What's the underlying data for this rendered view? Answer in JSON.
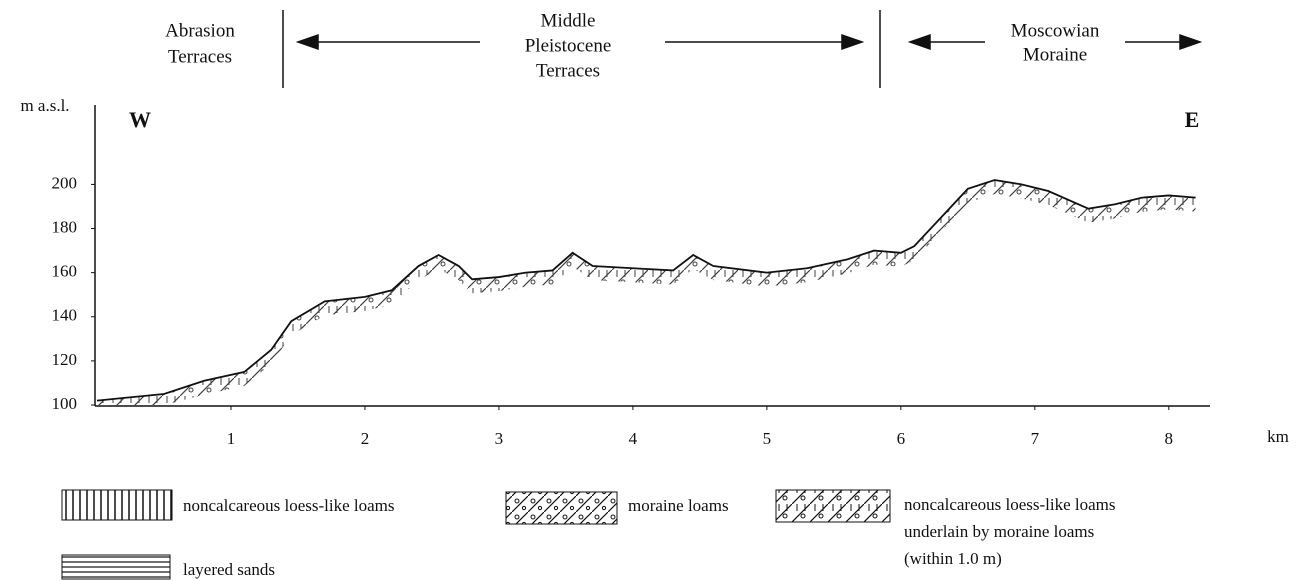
{
  "chart_data": {
    "type": "line",
    "annotations": [
      "Abrasion",
      "Terraces",
      "Middle",
      "Pleistocene",
      "Terraces",
      "Moscowian",
      "Moraine",
      "W",
      "E"
    ],
    "y_label": "m a.s.l.",
    "x_label": "km",
    "x": [
      0,
      0.5,
      0.8,
      1.1,
      1.3,
      1.45,
      1.7,
      2.0,
      2.2,
      2.4,
      2.55,
      2.7,
      2.8,
      3.0,
      3.2,
      3.4,
      3.55,
      3.7,
      4.0,
      4.3,
      4.45,
      4.6,
      5.0,
      5.3,
      5.6,
      5.8,
      6.0,
      6.1,
      6.3,
      6.5,
      6.7,
      6.9,
      7.1,
      7.4,
      7.6,
      7.8,
      8.0,
      8.2
    ],
    "values": [
      102,
      105,
      111,
      115,
      125,
      138,
      147,
      149,
      152,
      163,
      168,
      163,
      157,
      158,
      160,
      161,
      169,
      163,
      162,
      161,
      168,
      163,
      160,
      162,
      166,
      170,
      169,
      172,
      185,
      198,
      202,
      200,
      197,
      189,
      191,
      194,
      195,
      194
    ],
    "color": "#111111",
    "xlim": [
      0,
      8.3
    ],
    "xticks": [
      1,
      2,
      3,
      4,
      5,
      6,
      7,
      8
    ],
    "ylim": [
      100,
      236
    ],
    "yticks": [
      100,
      120,
      140,
      160,
      180,
      200
    ],
    "legend": [
      [
        "noncalcareous loess-like loams"
      ],
      [
        "moraine loams"
      ],
      [
        "noncalcareous loess-like loams",
        "underlain by moraine loams",
        "(within 1.0 m)"
      ],
      [
        "layered sands"
      ]
    ]
  }
}
